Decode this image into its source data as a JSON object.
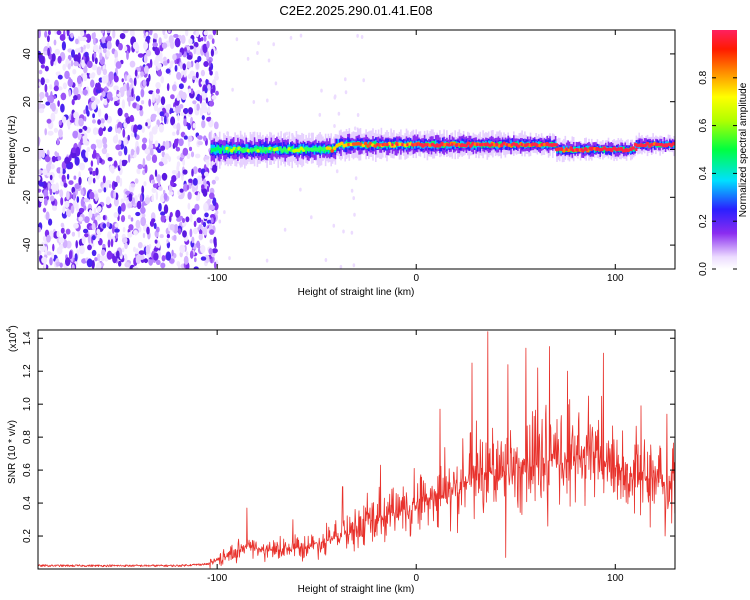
{
  "title": "C2E2.2025.290.01.41.E08",
  "chart_data": [
    {
      "type": "heatmap",
      "name": "spectrogram",
      "title": "C2E2.2025.290.01.41.E08",
      "xlabel": "Height of straight line (km)",
      "ylabel": "Frequency (Hz)",
      "xlim": [
        -190,
        130
      ],
      "ylim": [
        -50,
        50
      ],
      "x_ticks": [
        -100,
        0,
        100
      ],
      "x_tick_labels": [
        "-100",
        "0",
        "100"
      ],
      "y_ticks": [
        -40,
        -20,
        0,
        20,
        40
      ],
      "y_tick_labels": [
        "-40",
        "-20",
        "0",
        "20",
        "40"
      ],
      "noise_region_x": [
        -190,
        -100
      ],
      "signal_band": {
        "x_start": -103,
        "x_end": 130,
        "center_freq_segments": [
          {
            "x": [
              -103,
              -40
            ],
            "freq": 0
          },
          {
            "x": [
              -40,
              70
            ],
            "freq": 2
          },
          {
            "x": [
              70,
              110
            ],
            "freq": 0
          },
          {
            "x": [
              110,
              130
            ],
            "freq": 2
          }
        ]
      },
      "colorbar": {
        "label": "Normalized spectral amplitude",
        "min": 0,
        "max": 1,
        "ticks": [
          0.0,
          0.2,
          0.4,
          0.6,
          0.8
        ],
        "tick_labels": [
          "0.0",
          "0.2",
          "0.4",
          "0.6",
          "0.8"
        ]
      }
    },
    {
      "type": "line",
      "name": "snr",
      "xlabel": "Height of straight line (km)",
      "ylabel": "SNR (10 * v/v)",
      "y_scale_label": "(x10",
      "y_scale_exp": "4",
      "y_scale_close": ")",
      "xlim": [
        -190,
        130
      ],
      "ylim": [
        0,
        1.45
      ],
      "x_ticks": [
        -100,
        0,
        100
      ],
      "x_tick_labels": [
        "-100",
        "0",
        "100"
      ],
      "y_ticks": [
        0.2,
        0.4,
        0.6,
        0.8,
        1.0,
        1.2,
        1.4
      ],
      "y_tick_labels": [
        "0.2",
        "0.4",
        "0.6",
        "0.8",
        "1.0",
        "1.2",
        "1.4"
      ],
      "color": "#e8322c",
      "envelope": {
        "x": [
          -190,
          -120,
          -105,
          -95,
          -85,
          -75,
          -60,
          -45,
          -30,
          -15,
          0,
          15,
          30,
          45,
          60,
          75,
          90,
          100,
          110,
          120,
          130
        ],
        "y": [
          0.02,
          0.02,
          0.03,
          0.08,
          0.14,
          0.11,
          0.12,
          0.17,
          0.24,
          0.32,
          0.4,
          0.47,
          0.55,
          0.6,
          0.63,
          0.66,
          0.68,
          0.62,
          0.56,
          0.52,
          0.55
        ]
      },
      "peaks": [
        {
          "x": -85,
          "y": 0.37
        },
        {
          "x": -62,
          "y": 0.3
        },
        {
          "x": -37,
          "y": 0.5
        },
        {
          "x": -18,
          "y": 0.63
        },
        {
          "x": 12,
          "y": 0.97
        },
        {
          "x": 28,
          "y": 1.25
        },
        {
          "x": 36,
          "y": 1.44
        },
        {
          "x": 46,
          "y": 1.24
        },
        {
          "x": 55,
          "y": 1.34
        },
        {
          "x": 61,
          "y": 1.22
        },
        {
          "x": 67,
          "y": 1.35
        },
        {
          "x": 76,
          "y": 1.2
        },
        {
          "x": 94,
          "y": 1.31
        },
        {
          "x": 113,
          "y": 0.99
        },
        {
          "x": 126,
          "y": 0.94
        }
      ],
      "dips": [
        {
          "x": 45,
          "y": 0.07
        },
        {
          "x": 66,
          "y": 0.26
        },
        {
          "x": 125,
          "y": 0.2
        }
      ]
    }
  ]
}
